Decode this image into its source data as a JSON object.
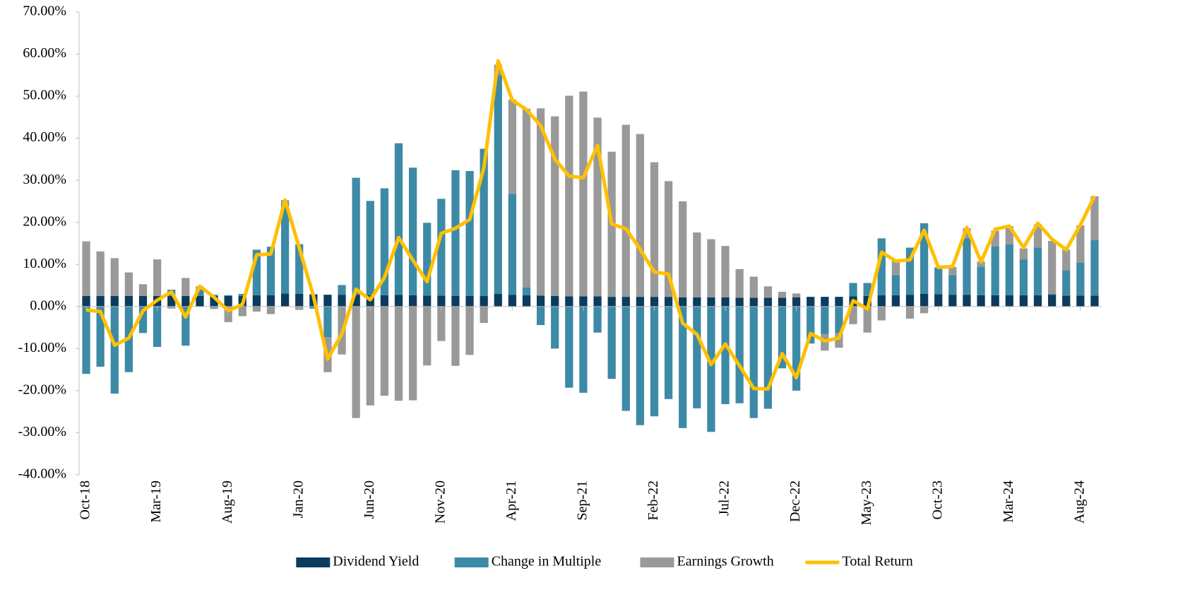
{
  "chart_data": {
    "type": "bar",
    "stacked": true,
    "legend": "bottom",
    "grid": false,
    "categories": [
      "Oct-18",
      null,
      null,
      null,
      null,
      "Mar-19",
      null,
      null,
      null,
      null,
      "Aug-19",
      null,
      null,
      null,
      null,
      "Jan-20",
      null,
      null,
      null,
      null,
      "Jun-20",
      null,
      null,
      null,
      null,
      "Nov-20",
      null,
      null,
      null,
      null,
      "Apr-21",
      null,
      null,
      null,
      null,
      "Sep-21",
      null,
      null,
      null,
      null,
      "Feb-22",
      null,
      null,
      null,
      null,
      "Jul-22",
      null,
      null,
      null,
      null,
      "Dec-22",
      null,
      null,
      null,
      null,
      "May-23",
      null,
      null,
      null,
      null,
      "Oct-23",
      null,
      null,
      null,
      null,
      "Mar-24",
      null,
      null,
      null,
      null,
      "Aug-24",
      null
    ],
    "ylim": [
      -40,
      70
    ],
    "yticks": [
      {
        "value": -40,
        "label": "-40.00%"
      },
      {
        "value": -30,
        "label": "-30.00%"
      },
      {
        "value": -20,
        "label": "-20.00%"
      },
      {
        "value": -10,
        "label": "-10.00%"
      },
      {
        "value": 0,
        "label": "0.00%"
      },
      {
        "value": 10,
        "label": "10.00%"
      },
      {
        "value": 20,
        "label": "20.00%"
      },
      {
        "value": 30,
        "label": "30.00%"
      },
      {
        "value": 40,
        "label": "40.00%"
      },
      {
        "value": 50,
        "label": "50.00%"
      },
      {
        "value": 60,
        "label": "60.00%"
      },
      {
        "value": 70,
        "label": "70.00%"
      }
    ],
    "series": [
      {
        "name": "Dividend Yield",
        "type": "bar",
        "color": "#0b3c5d",
        "values": [
          2.5,
          2.5,
          2.5,
          2.5,
          2.5,
          2.5,
          2.5,
          2.5,
          2.5,
          2.5,
          2.5,
          2.5,
          2.7,
          2.7,
          3.1,
          3,
          2.9,
          2.8,
          2.8,
          2.8,
          2.7,
          2.7,
          2.8,
          2.7,
          2.6,
          2.6,
          2.5,
          2.5,
          2.5,
          3,
          2.8,
          2.7,
          2.6,
          2.5,
          2.4,
          2.4,
          2.4,
          2.3,
          2.3,
          2.3,
          2.3,
          2.3,
          2.2,
          2.2,
          2.2,
          2.2,
          2.1,
          2.1,
          2.1,
          2.1,
          2.2,
          2.3,
          2.3,
          2.3,
          2.4,
          2.5,
          2.7,
          2.7,
          2.8,
          3,
          2.9,
          2.8,
          2.8,
          2.7,
          2.7,
          2.7,
          2.7,
          2.7,
          2.8,
          2.6,
          2.6,
          2.6
        ]
      },
      {
        "name": "Change in Multiple",
        "type": "bar",
        "color": "#3d8aa6",
        "values": [
          -16,
          -14.3,
          -20.7,
          -15.6,
          -6.3,
          -9.6,
          1.5,
          -9.3,
          1.5,
          0.3,
          0.2,
          0.5,
          10.8,
          11.5,
          21.5,
          11.8,
          -0.5,
          -7.3,
          2.3,
          27.8,
          22.4,
          25.4,
          36,
          30.3,
          17.3,
          23,
          29.9,
          29.7,
          35,
          52,
          24,
          1.8,
          -4.4,
          -10,
          -19.3,
          -20.5,
          -6.2,
          -17.2,
          -24.8,
          -28.2,
          -26.1,
          -22,
          -28.9,
          -24.2,
          -29.8,
          -23.2,
          -23,
          -26.5,
          -24.3,
          -14.7,
          -20,
          -8.8,
          -6.5,
          -6.3,
          3.2,
          3.1,
          13.5,
          4.8,
          11.2,
          16.8,
          6.2,
          4.7,
          13.5,
          6.8,
          11.6,
          12.1,
          8.5,
          11.3,
          0.2,
          6,
          7.9,
          13.2
        ]
      },
      {
        "name": "Earnings Growth",
        "type": "bar",
        "color": "#999999",
        "values": [
          13,
          10.6,
          9,
          5.6,
          2.8,
          8.7,
          -0.5,
          4.3,
          0.8,
          -0.6,
          -3.7,
          -2.3,
          -1.2,
          -1.8,
          0.7,
          -0.8,
          0,
          -8.3,
          -11.4,
          -26.5,
          -23.5,
          -21.2,
          -22.4,
          -22.3,
          -14,
          -8.2,
          -14.1,
          -11.5,
          -3.9,
          2.5,
          22.4,
          42.5,
          44.5,
          42.7,
          47.7,
          48.7,
          42.5,
          34.5,
          40.9,
          38.7,
          32,
          27.5,
          22.8,
          15.4,
          13.8,
          12.2,
          6.8,
          5,
          2.7,
          1.4,
          0.9,
          0,
          -4,
          -3.5,
          -4.2,
          -6.2,
          -3.3,
          3.3,
          -2.9,
          -1.6,
          0.3,
          1.9,
          2.3,
          1.2,
          3.7,
          4.3,
          2.6,
          5.5,
          12.6,
          4.9,
          8.8,
          10.4
        ]
      },
      {
        "name": "Total Return",
        "type": "line",
        "color": "#ffc000",
        "values": [
          -0.8,
          -1.2,
          -9.2,
          -7.5,
          -1,
          1.5,
          3.5,
          -2.5,
          4.8,
          2.2,
          -1,
          0.5,
          12.3,
          12.5,
          25.3,
          14,
          2.5,
          -12.5,
          -6.5,
          4.1,
          1.6,
          6.9,
          16.4,
          11,
          5.9,
          17.4,
          18.6,
          20.7,
          33,
          58.4,
          49,
          46.8,
          43,
          35,
          31,
          30.6,
          38.3,
          19.6,
          18.5,
          13.6,
          8.2,
          7.7,
          -4,
          -6.6,
          -13.8,
          -8.9,
          -14.1,
          -19.5,
          -19.6,
          -11.2,
          -16.9,
          -6.4,
          -8.2,
          -7.5,
          1.4,
          -0.6,
          12.9,
          10.8,
          11.1,
          18.1,
          9.3,
          9.5,
          18.8,
          10.6,
          18.4,
          19.1,
          14,
          19.8,
          16,
          13.5,
          19.4,
          26.3
        ]
      }
    ]
  }
}
